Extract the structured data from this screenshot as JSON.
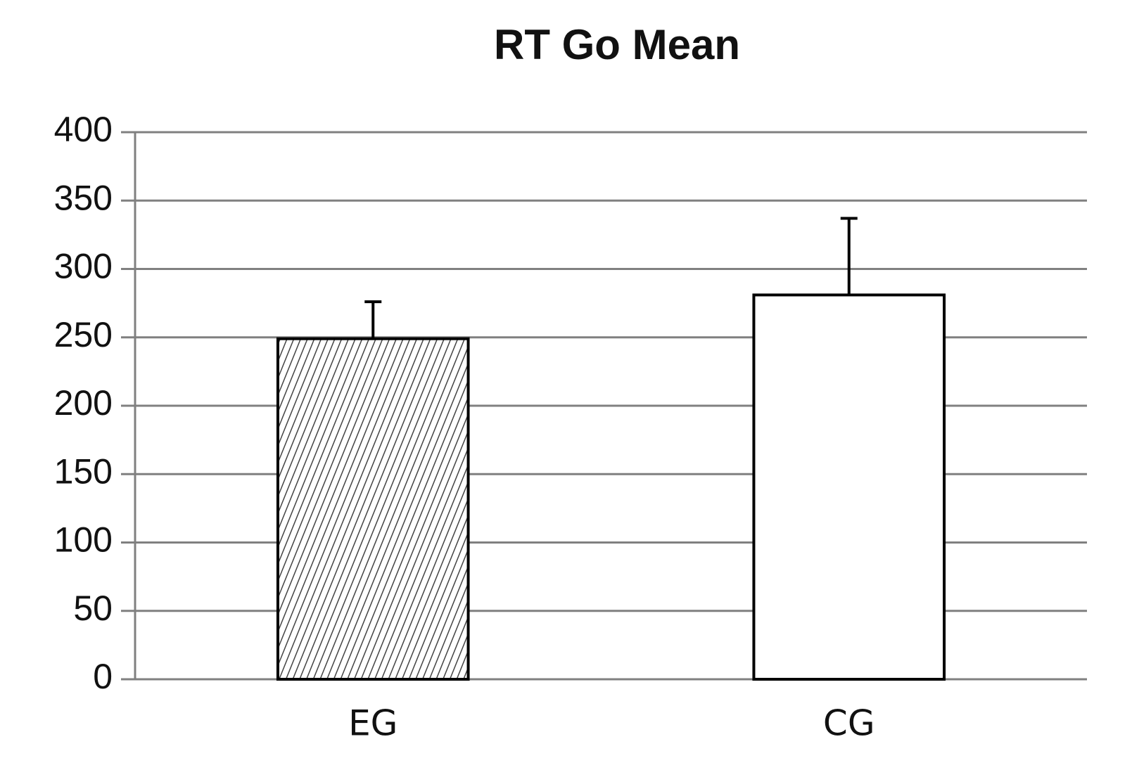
{
  "chart_data": {
    "type": "bar",
    "title": "RT Go Mean",
    "categories": [
      "EG",
      "CG"
    ],
    "values": [
      249,
      281
    ],
    "errors": [
      27,
      56
    ],
    "fills": [
      "hatch",
      "white"
    ],
    "ylim": [
      0,
      400
    ],
    "yticks": [
      0,
      50,
      100,
      150,
      200,
      250,
      300,
      350,
      400
    ],
    "grid": true
  }
}
